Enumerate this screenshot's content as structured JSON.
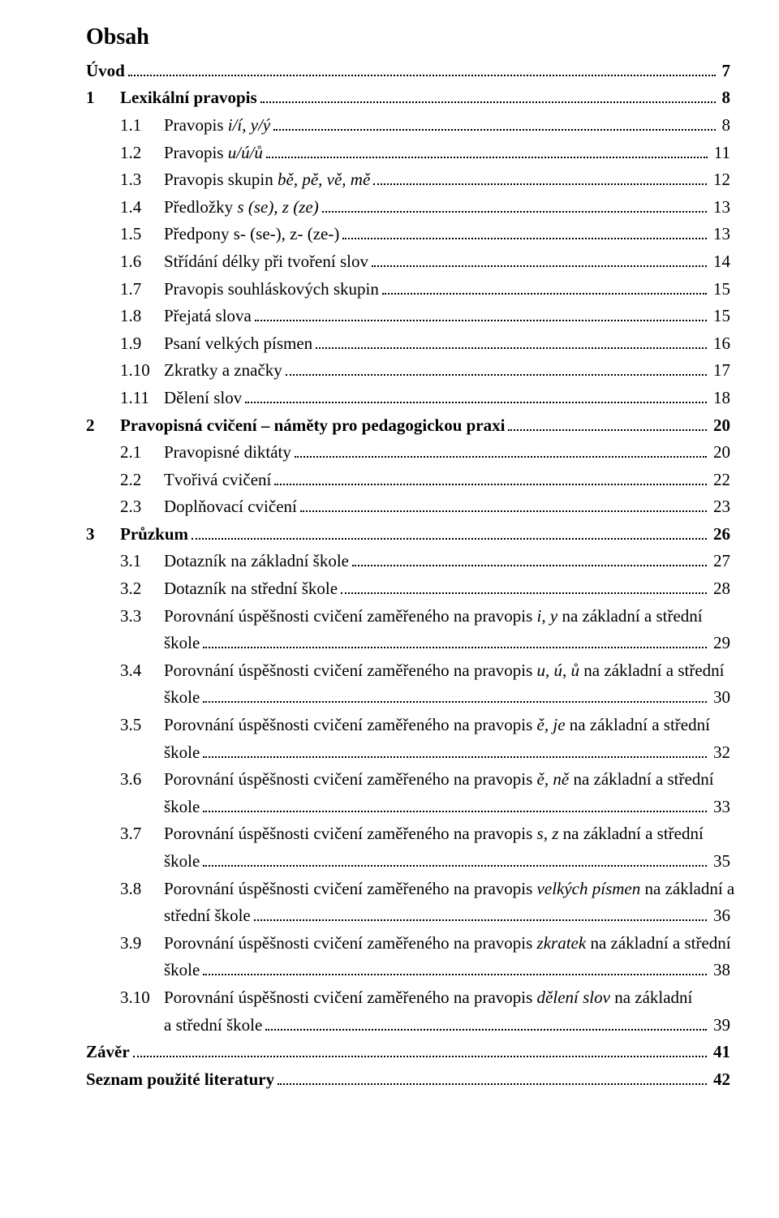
{
  "title": "Obsah",
  "entries": [
    {
      "num": "",
      "label": "Úvod",
      "page": "7",
      "level": 0,
      "bold": true
    },
    {
      "num": "1",
      "label": "Lexikální pravopis",
      "page": "8",
      "level": 0,
      "bold": true
    },
    {
      "num": "1.1",
      "label": "Pravopis ",
      "italic_tail": "i/í, y/ý",
      "page": "8",
      "level": 1
    },
    {
      "num": "1.2",
      "label": "Pravopis ",
      "italic_tail": "u/ú/ů",
      "page": "11",
      "level": 1
    },
    {
      "num": "1.3",
      "label": "Pravopis skupin ",
      "italic_tail": "bě, pě, vě, mě",
      "page": "12",
      "level": 1
    },
    {
      "num": "1.4",
      "label": "Předložky ",
      "italic_tail": "s (se), z (ze)",
      "page": "13",
      "level": 1
    },
    {
      "num": "1.5",
      "label": "Předpony s- (se-), z- (ze-)",
      "page": "13",
      "level": 1
    },
    {
      "num": "1.6",
      "label": "Střídání délky při tvoření slov",
      "page": "14",
      "level": 1
    },
    {
      "num": "1.7",
      "label": "Pravopis souhláskových skupin",
      "page": "15",
      "level": 1
    },
    {
      "num": "1.8",
      "label": "Přejatá slova",
      "page": "15",
      "level": 1
    },
    {
      "num": "1.9",
      "label": "Psaní velkých písmen",
      "page": "16",
      "level": 1
    },
    {
      "num": "1.10",
      "label": "Zkratky a značky",
      "page": "17",
      "level": 1
    },
    {
      "num": "1.11",
      "label": "Dělení slov",
      "page": "18",
      "level": 1
    },
    {
      "num": "2",
      "label": "Pravopisná cvičení – náměty pro pedagogickou praxi",
      "page": "20",
      "level": 0,
      "bold": true
    },
    {
      "num": "2.1",
      "label": "Pravopisné diktáty",
      "page": "20",
      "level": 1
    },
    {
      "num": "2.2",
      "label": "Tvořivá cvičení",
      "page": "22",
      "level": 1
    },
    {
      "num": "2.3",
      "label": "Doplňovací cvičení",
      "page": "23",
      "level": 1
    },
    {
      "num": "3",
      "label": "Průzkum",
      "page": "26",
      "level": 0,
      "bold": true
    },
    {
      "num": "3.1",
      "label": "Dotazník na základní škole",
      "page": "27",
      "level": 1
    },
    {
      "num": "3.2",
      "label": "Dotazník na střední škole",
      "page": "28",
      "level": 1
    },
    {
      "num": "3.3",
      "label_line1": "Porovnání úspěšnosti cvičení zaměřeného na pravopis ",
      "italic_mid": "i, y",
      "label_line1_tail": " na základní a střední",
      "label_line2": "škole",
      "page": "29",
      "level": 1,
      "multi": true
    },
    {
      "num": "3.4",
      "label_line1": "Porovnání úspěšnosti cvičení zaměřeného na pravopis ",
      "italic_mid": "u, ú, ů",
      "label_line1_tail": " na základní a střední",
      "label_line2": "škole",
      "page": "30",
      "level": 1,
      "multi": true
    },
    {
      "num": "3.5",
      "label_line1": "Porovnání úspěšnosti cvičení zaměřeného na pravopis ",
      "italic_mid": "ě, je",
      "label_line1_tail": " na základní a střední",
      "label_line2": "škole",
      "page": "32",
      "level": 1,
      "multi": true
    },
    {
      "num": "3.6",
      "label_line1": "Porovnání úspěšnosti cvičení zaměřeného na pravopis ",
      "italic_mid": "ě, ně",
      "label_line1_tail": " na základní a střední",
      "label_line2": "škole",
      "page": "33",
      "level": 1,
      "multi": true
    },
    {
      "num": "3.7",
      "label_line1": "Porovnání úspěšnosti cvičení zaměřeného na pravopis ",
      "italic_mid": "s, z",
      "label_line1_tail": " na základní a střední",
      "label_line2": "škole",
      "page": "35",
      "level": 1,
      "multi": true
    },
    {
      "num": "3.8",
      "label_line1": "Porovnání úspěšnosti cvičení zaměřeného na pravopis ",
      "italic_mid": "velkých písmen",
      "label_line1_tail": " na základní a",
      "label_line2": "střední škole",
      "page": "36",
      "level": 1,
      "multi": true
    },
    {
      "num": "3.9",
      "label_line1": "Porovnání úspěšnosti cvičení zaměřeného na pravopis ",
      "italic_mid": "zkratek",
      "label_line1_tail": " na základní a střední",
      "label_line2": "škole",
      "page": "38",
      "level": 1,
      "multi": true
    },
    {
      "num": "3.10",
      "label_line1": "Porovnání úspěšnosti cvičení zaměřeného na pravopis ",
      "italic_mid": "dělení slov",
      "label_line1_tail": " na základní",
      "label_line2": "a střední škole",
      "page": "39",
      "level": 1,
      "multi": true
    },
    {
      "num": "",
      "label": "Závěr",
      "page": "41",
      "level": 0,
      "bold": true
    },
    {
      "num": "",
      "label": "Seznam použité literatury",
      "page": "42",
      "level": 0,
      "bold": true
    }
  ]
}
